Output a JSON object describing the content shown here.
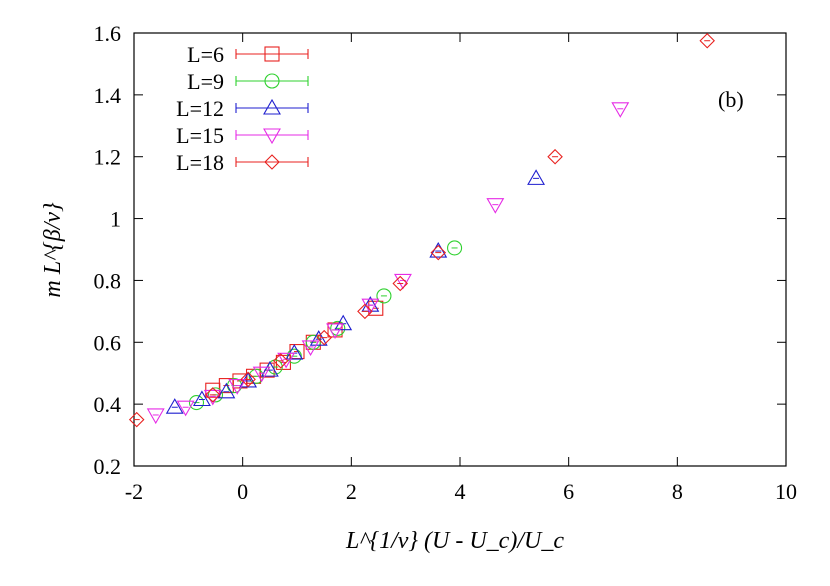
{
  "chart_data": {
    "type": "scatter",
    "panel_label": "(b)",
    "xlabel": "L^{1/ν} (U - U_c)/U_c",
    "ylabel": "m L^{β/ν}",
    "xlim": [
      -2,
      10
    ],
    "ylim": [
      0.2,
      1.6
    ],
    "x_ticks": [
      -2,
      0,
      2,
      4,
      6,
      8,
      10
    ],
    "x_tick_labels": [
      "-2",
      "0",
      "2",
      "4",
      "6",
      "8",
      "10"
    ],
    "y_ticks": [
      0.2,
      0.4,
      0.6,
      0.8,
      1.0,
      1.2,
      1.4,
      1.6
    ],
    "y_tick_labels": [
      "0.2",
      "0.4",
      "0.6",
      "0.8",
      "1",
      "1.2",
      "1.4",
      "1.6"
    ],
    "grid": false,
    "legend_position": "top-left",
    "series": [
      {
        "name": "L=6",
        "marker": "square",
        "color": "#e8211f",
        "points": [
          [
            -0.55,
            0.445
          ],
          [
            -0.3,
            0.46
          ],
          [
            -0.05,
            0.475
          ],
          [
            0.2,
            0.49
          ],
          [
            0.45,
            0.51
          ],
          [
            0.75,
            0.535
          ],
          [
            1.0,
            0.57
          ],
          [
            1.3,
            0.6
          ],
          [
            1.7,
            0.64
          ],
          [
            2.45,
            0.71
          ]
        ]
      },
      {
        "name": "L=9",
        "marker": "circle",
        "color": "#2fd12f",
        "points": [
          [
            -0.85,
            0.405
          ],
          [
            -0.5,
            0.43
          ],
          [
            -0.15,
            0.46
          ],
          [
            0.25,
            0.49
          ],
          [
            0.6,
            0.52
          ],
          [
            0.95,
            0.555
          ],
          [
            1.3,
            0.6
          ],
          [
            1.75,
            0.645
          ],
          [
            2.6,
            0.75
          ],
          [
            3.9,
            0.905
          ]
        ]
      },
      {
        "name": "L=12",
        "marker": "triangle-up",
        "color": "#1f1fcf",
        "points": [
          [
            -1.25,
            0.39
          ],
          [
            -0.75,
            0.415
          ],
          [
            -0.3,
            0.44
          ],
          [
            0.1,
            0.475
          ],
          [
            0.5,
            0.51
          ],
          [
            0.95,
            0.565
          ],
          [
            1.4,
            0.61
          ],
          [
            1.85,
            0.66
          ],
          [
            2.35,
            0.72
          ],
          [
            3.6,
            0.895
          ],
          [
            5.4,
            1.13
          ]
        ]
      },
      {
        "name": "L=15",
        "marker": "triangle-down",
        "color": "#e62be6",
        "points": [
          [
            -1.6,
            0.365
          ],
          [
            -1.05,
            0.39
          ],
          [
            -0.55,
            0.425
          ],
          [
            -0.1,
            0.46
          ],
          [
            0.35,
            0.5
          ],
          [
            0.8,
            0.545
          ],
          [
            1.25,
            0.585
          ],
          [
            1.7,
            0.64
          ],
          [
            2.35,
            0.72
          ],
          [
            2.95,
            0.8
          ],
          [
            4.65,
            1.045
          ],
          [
            6.95,
            1.355
          ]
        ]
      },
      {
        "name": "L=18",
        "marker": "diamond",
        "color": "#e8211f",
        "points": [
          [
            -1.95,
            0.35
          ],
          [
            -0.55,
            0.43
          ],
          [
            0.1,
            0.48
          ],
          [
            0.7,
            0.54
          ],
          [
            1.5,
            0.615
          ],
          [
            2.25,
            0.7
          ],
          [
            2.9,
            0.79
          ],
          [
            3.6,
            0.89
          ],
          [
            5.75,
            1.2
          ],
          [
            8.55,
            1.575
          ]
        ]
      }
    ]
  }
}
